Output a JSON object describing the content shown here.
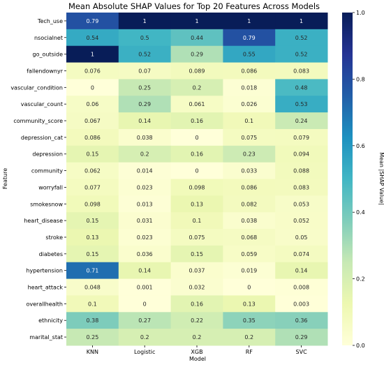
{
  "chart_data": {
    "type": "heatmap",
    "title": "Mean Absolute SHAP Values for Top 20 Features Across Models",
    "xlabel": "Model",
    "ylabel": "Feature",
    "colorbar_label": "Mean |SHAP Value|",
    "colormap": "YlGnBu",
    "vmin": 0.0,
    "vmax": 1.0,
    "colorbar_ticks": [
      "0.0",
      "0.2",
      "0.4",
      "0.6",
      "0.8",
      "1.0"
    ],
    "x": [
      "KNN",
      "Logistic",
      "XGB",
      "RF",
      "SVC"
    ],
    "y": [
      "Tech_use",
      "nsocialnet",
      "go_outside",
      "fallendownyr",
      "vascular_condition",
      "vascular_count",
      "community_score",
      "depression_cat",
      "depression",
      "community",
      "worryfall",
      "smokesnow",
      "heart_disease",
      "stroke",
      "diabetes",
      "hypertension",
      "heart_attack",
      "overallhealth",
      "ethnicity",
      "marital_stat"
    ],
    "values": [
      [
        "0.79",
        "1",
        "1",
        "1",
        "1"
      ],
      [
        "0.54",
        "0.5",
        "0.44",
        "0.79",
        "0.52"
      ],
      [
        "1",
        "0.52",
        "0.29",
        "0.55",
        "0.52"
      ],
      [
        "0.076",
        "0.07",
        "0.089",
        "0.086",
        "0.083"
      ],
      [
        "0",
        "0.25",
        "0.2",
        "0.018",
        "0.48"
      ],
      [
        "0.06",
        "0.29",
        "0.061",
        "0.026",
        "0.53"
      ],
      [
        "0.067",
        "0.14",
        "0.16",
        "0.1",
        "0.24"
      ],
      [
        "0.086",
        "0.038",
        "0",
        "0.075",
        "0.079"
      ],
      [
        "0.15",
        "0.2",
        "0.16",
        "0.23",
        "0.094"
      ],
      [
        "0.062",
        "0.014",
        "0",
        "0.033",
        "0.088"
      ],
      [
        "0.077",
        "0.023",
        "0.098",
        "0.086",
        "0.083"
      ],
      [
        "0.098",
        "0.013",
        "0.13",
        "0.082",
        "0.053"
      ],
      [
        "0.15",
        "0.031",
        "0.1",
        "0.038",
        "0.052"
      ],
      [
        "0.13",
        "0.023",
        "0.075",
        "0.068",
        "0.05"
      ],
      [
        "0.15",
        "0.036",
        "0.15",
        "0.059",
        "0.074"
      ],
      [
        "0.71",
        "0.14",
        "0.037",
        "0.019",
        "0.14"
      ],
      [
        "0.048",
        "0.001",
        "0.032",
        "0",
        "0.008"
      ],
      [
        "0.1",
        "0",
        "0.16",
        "0.13",
        "0.003"
      ],
      [
        "0.38",
        "0.27",
        "0.22",
        "0.35",
        "0.36"
      ],
      [
        "0.25",
        "0.2",
        "0.2",
        "0.2",
        "0.29"
      ]
    ]
  }
}
